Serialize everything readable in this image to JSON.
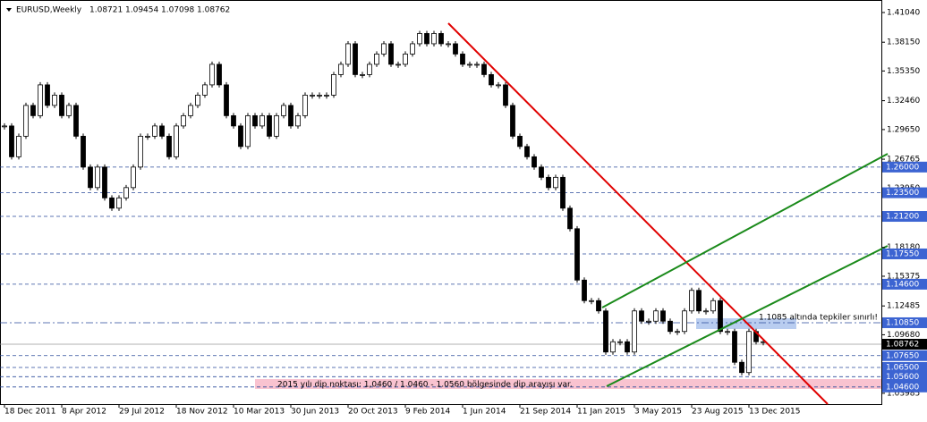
{
  "chart_data": {
    "type": "candlestick",
    "symbol": "EURUSD,Weekly",
    "ohlc": [
      1.08721,
      1.09454,
      1.07098,
      1.08762
    ],
    "categories": [
      "18 Dec 2011",
      null,
      null,
      null,
      null,
      null,
      null,
      null,
      "8 Apr 2012",
      null,
      null,
      null,
      null,
      null,
      null,
      null,
      "29 Jul 2012",
      null,
      null,
      null,
      null,
      null,
      null,
      null,
      "18 Nov 2012",
      null,
      null,
      null,
      null,
      null,
      null,
      null,
      "10 Mar 2013",
      null,
      null,
      null,
      null,
      null,
      null,
      null,
      "30 Jun 2013",
      null,
      null,
      null,
      null,
      null,
      null,
      null,
      "20 Oct 2013",
      null,
      null,
      null,
      null,
      null,
      null,
      null,
      "9 Feb 2014",
      null,
      null,
      null,
      null,
      null,
      null,
      null,
      "1 Jun 2014",
      null,
      null,
      null,
      null,
      null,
      null,
      null,
      "21 Sep 2014",
      null,
      null,
      null,
      null,
      null,
      null,
      null,
      "11 Jan 2015",
      null,
      null,
      null,
      null,
      null,
      null,
      null,
      "3 May 2015",
      null,
      null,
      null,
      null,
      null,
      null,
      null,
      "23 Aug 2015",
      null,
      null,
      null,
      null,
      null,
      null,
      null,
      "13 Dec 2015",
      null,
      null
    ],
    "closes": [
      1.3,
      1.27,
      1.29,
      1.32,
      1.31,
      1.34,
      1.32,
      1.33,
      1.31,
      1.32,
      1.29,
      1.26,
      1.24,
      1.26,
      1.23,
      1.22,
      1.23,
      1.24,
      1.26,
      1.29,
      1.29,
      1.3,
      1.29,
      1.27,
      1.3,
      1.31,
      1.32,
      1.33,
      1.34,
      1.36,
      1.34,
      1.31,
      1.3,
      1.28,
      1.31,
      1.3,
      1.31,
      1.29,
      1.31,
      1.32,
      1.3,
      1.31,
      1.33,
      1.33,
      1.33,
      1.33,
      1.35,
      1.36,
      1.38,
      1.35,
      1.35,
      1.36,
      1.37,
      1.38,
      1.36,
      1.36,
      1.37,
      1.38,
      1.39,
      1.38,
      1.39,
      1.38,
      1.38,
      1.37,
      1.36,
      1.36,
      1.36,
      1.35,
      1.34,
      1.34,
      1.32,
      1.29,
      1.28,
      1.27,
      1.26,
      1.25,
      1.24,
      1.25,
      1.22,
      1.2,
      1.15,
      1.13,
      1.13,
      1.12,
      1.08,
      1.09,
      1.09,
      1.08,
      1.12,
      1.11,
      1.11,
      1.12,
      1.11,
      1.1,
      1.1,
      1.12,
      1.14,
      1.12,
      1.12,
      1.13,
      1.1,
      1.1,
      1.07,
      1.06,
      1.1,
      1.09,
      1.09
    ],
    "ylim": [
      1.0293,
      1.4104
    ],
    "yticks": [
      {
        "value": 1.4104,
        "label": "1.41040"
      },
      {
        "value": 1.3815,
        "label": "1.38150"
      },
      {
        "value": 1.3535,
        "label": "1.35350"
      },
      {
        "value": 1.3246,
        "label": "1.32460"
      },
      {
        "value": 1.2965,
        "label": "1.29650"
      },
      {
        "value": 1.26765,
        "label": "1.26765"
      },
      {
        "value": 1.2395,
        "label": "1.23950"
      },
      {
        "value": 1.1818,
        "label": "1.18180"
      },
      {
        "value": 1.15375,
        "label": "1.15375"
      },
      {
        "value": 1.12485,
        "label": "1.12485"
      },
      {
        "value": 1.0968,
        "label": "1.09680"
      },
      {
        "value": 1.03985,
        "label": "1.03985"
      }
    ],
    "levels": [
      {
        "value": 1.26,
        "label": "1.26000"
      },
      {
        "value": 1.235,
        "label": "1.23500"
      },
      {
        "value": 1.212,
        "label": "1.21200"
      },
      {
        "value": 1.1755,
        "label": "1.17550"
      },
      {
        "value": 1.146,
        "label": "1.14600"
      },
      {
        "value": 1.1085,
        "label": "1.10850"
      },
      {
        "value": 1.0765,
        "label": "1.07650"
      },
      {
        "value": 1.065,
        "label": "1.06500"
      },
      {
        "value": 1.056,
        "label": "1.05600"
      },
      {
        "value": 1.046,
        "label": "1.04600"
      }
    ],
    "note": "1.1085 altında tepkiler sınırlı!",
    "bottom_note": "2015 yılı dip noktası: 1,0460 /  1.0460 - 1.0560 bölgesinde dip arayışı var."
  }
}
